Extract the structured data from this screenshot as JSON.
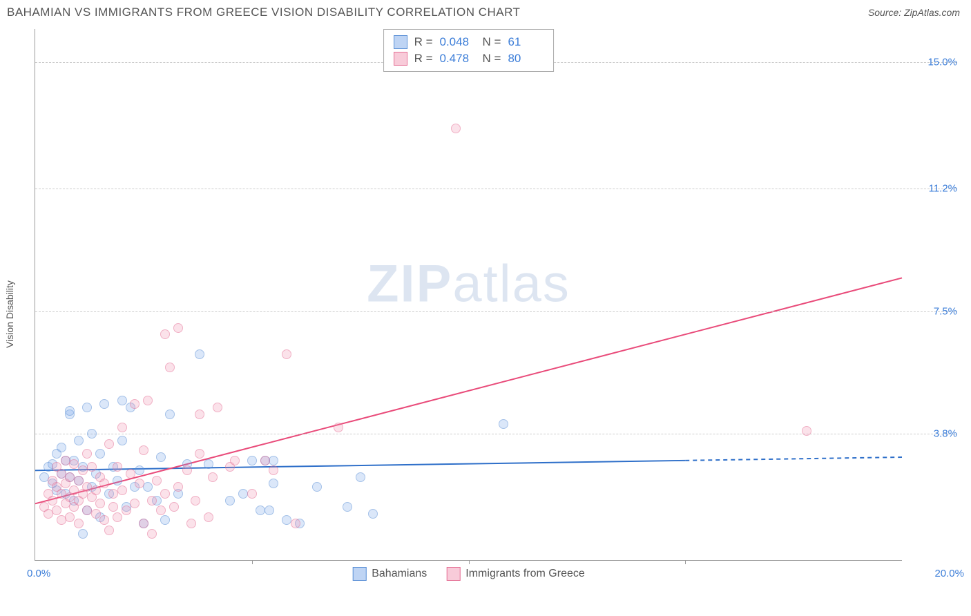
{
  "title": "BAHAMIAN VS IMMIGRANTS FROM GREECE VISION DISABILITY CORRELATION CHART",
  "source_label": "Source: ZipAtlas.com",
  "ylabel": "Vision Disability",
  "watermark": {
    "bold": "ZIP",
    "rest": "atlas"
  },
  "chart": {
    "type": "scatter",
    "xlim": [
      0,
      20
    ],
    "ylim": [
      0,
      16
    ],
    "x_ticks_major": [
      0,
      20
    ],
    "x_ticks_minor": [
      5,
      10,
      15
    ],
    "x_tick_labels": [
      "0.0%",
      "20.0%"
    ],
    "y_gridlines": [
      3.8,
      7.5,
      11.2,
      15.0
    ],
    "y_tick_labels": [
      "3.8%",
      "7.5%",
      "11.2%",
      "15.0%"
    ],
    "background_color": "#ffffff",
    "grid_color": "#cccccc",
    "axis_color": "#999999",
    "marker_radius": 7,
    "series": [
      {
        "name": "Bahamians",
        "color_fill": "rgba(110,160,230,0.45)",
        "color_stroke": "#5a8fd6",
        "R": "0.048",
        "N": "61",
        "trend": {
          "x1": 0,
          "y1": 2.7,
          "x2": 15,
          "y2": 3.0,
          "x2_dash": 20,
          "y2_dash": 3.1,
          "color": "#2e6fc9",
          "width": 2
        },
        "points": [
          [
            0.2,
            2.5
          ],
          [
            0.3,
            2.8
          ],
          [
            0.4,
            2.3
          ],
          [
            0.4,
            2.9
          ],
          [
            0.5,
            3.2
          ],
          [
            0.5,
            2.1
          ],
          [
            0.6,
            2.6
          ],
          [
            0.6,
            3.4
          ],
          [
            0.7,
            2.0
          ],
          [
            0.7,
            3.0
          ],
          [
            0.8,
            2.5
          ],
          [
            0.8,
            4.4
          ],
          [
            0.8,
            4.5
          ],
          [
            0.9,
            3.0
          ],
          [
            0.9,
            1.8
          ],
          [
            1.0,
            3.6
          ],
          [
            1.0,
            2.4
          ],
          [
            1.1,
            2.8
          ],
          [
            1.2,
            4.6
          ],
          [
            1.2,
            1.5
          ],
          [
            1.3,
            2.2
          ],
          [
            1.3,
            3.8
          ],
          [
            1.4,
            2.6
          ],
          [
            1.5,
            3.2
          ],
          [
            1.5,
            1.3
          ],
          [
            1.6,
            4.7
          ],
          [
            1.7,
            2.0
          ],
          [
            1.8,
            2.8
          ],
          [
            1.9,
            2.4
          ],
          [
            2.0,
            3.6
          ],
          [
            2.0,
            4.8
          ],
          [
            2.1,
            1.6
          ],
          [
            2.2,
            4.6
          ],
          [
            2.3,
            2.2
          ],
          [
            2.4,
            2.7
          ],
          [
            2.5,
            1.1
          ],
          [
            2.6,
            2.2
          ],
          [
            2.8,
            1.8
          ],
          [
            2.9,
            3.1
          ],
          [
            3.0,
            1.2
          ],
          [
            3.1,
            4.4
          ],
          [
            3.3,
            2.0
          ],
          [
            3.5,
            2.9
          ],
          [
            3.8,
            6.2
          ],
          [
            4.0,
            2.9
          ],
          [
            4.5,
            1.8
          ],
          [
            4.8,
            2.0
          ],
          [
            5.0,
            3.0
          ],
          [
            5.2,
            1.5
          ],
          [
            5.3,
            3.0
          ],
          [
            5.4,
            1.5
          ],
          [
            5.5,
            2.3
          ],
          [
            5.5,
            3.0
          ],
          [
            5.8,
            1.2
          ],
          [
            6.1,
            1.1
          ],
          [
            6.5,
            2.2
          ],
          [
            7.2,
            1.6
          ],
          [
            7.5,
            2.5
          ],
          [
            7.8,
            1.4
          ],
          [
            10.8,
            4.1
          ],
          [
            1.1,
            0.8
          ]
        ]
      },
      {
        "name": "Immigrants from Greece",
        "color_fill": "rgba(240,140,170,0.45)",
        "color_stroke": "#e56f95",
        "R": "0.478",
        "N": "80",
        "trend": {
          "x1": 0,
          "y1": 1.7,
          "x2": 20,
          "y2": 8.5,
          "color": "#e94b7a",
          "width": 2
        },
        "points": [
          [
            0.2,
            1.6
          ],
          [
            0.3,
            2.0
          ],
          [
            0.3,
            1.4
          ],
          [
            0.4,
            2.4
          ],
          [
            0.4,
            1.8
          ],
          [
            0.5,
            2.2
          ],
          [
            0.5,
            1.5
          ],
          [
            0.5,
            2.8
          ],
          [
            0.6,
            2.0
          ],
          [
            0.6,
            1.2
          ],
          [
            0.6,
            2.6
          ],
          [
            0.7,
            3.0
          ],
          [
            0.7,
            1.7
          ],
          [
            0.7,
            2.3
          ],
          [
            0.8,
            1.9
          ],
          [
            0.8,
            2.5
          ],
          [
            0.8,
            1.3
          ],
          [
            0.9,
            2.1
          ],
          [
            0.9,
            1.6
          ],
          [
            0.9,
            2.9
          ],
          [
            1.0,
            1.8
          ],
          [
            1.0,
            2.4
          ],
          [
            1.0,
            1.1
          ],
          [
            1.1,
            2.0
          ],
          [
            1.1,
            2.7
          ],
          [
            1.2,
            3.2
          ],
          [
            1.2,
            1.5
          ],
          [
            1.2,
            2.2
          ],
          [
            1.3,
            1.9
          ],
          [
            1.3,
            2.8
          ],
          [
            1.4,
            1.4
          ],
          [
            1.4,
            2.1
          ],
          [
            1.5,
            1.7
          ],
          [
            1.5,
            2.5
          ],
          [
            1.6,
            1.2
          ],
          [
            1.6,
            2.3
          ],
          [
            1.7,
            3.5
          ],
          [
            1.7,
            0.9
          ],
          [
            1.8,
            2.0
          ],
          [
            1.8,
            1.6
          ],
          [
            1.9,
            2.8
          ],
          [
            1.9,
            1.3
          ],
          [
            2.0,
            4.0
          ],
          [
            2.0,
            2.1
          ],
          [
            2.1,
            1.5
          ],
          [
            2.2,
            2.6
          ],
          [
            2.3,
            4.7
          ],
          [
            2.3,
            1.7
          ],
          [
            2.4,
            2.3
          ],
          [
            2.5,
            1.1
          ],
          [
            2.5,
            3.3
          ],
          [
            2.6,
            4.8
          ],
          [
            2.7,
            1.8
          ],
          [
            2.7,
            0.8
          ],
          [
            2.8,
            2.4
          ],
          [
            2.9,
            1.5
          ],
          [
            3.0,
            6.8
          ],
          [
            3.0,
            2.0
          ],
          [
            3.1,
            5.8
          ],
          [
            3.2,
            1.6
          ],
          [
            3.3,
            7.0
          ],
          [
            3.3,
            2.2
          ],
          [
            3.5,
            2.7
          ],
          [
            3.6,
            1.1
          ],
          [
            3.7,
            1.8
          ],
          [
            3.8,
            4.4
          ],
          [
            3.8,
            3.2
          ],
          [
            4.0,
            1.3
          ],
          [
            4.1,
            2.5
          ],
          [
            4.2,
            4.6
          ],
          [
            4.5,
            2.8
          ],
          [
            4.6,
            3.0
          ],
          [
            5.0,
            2.0
          ],
          [
            5.3,
            3.0
          ],
          [
            5.5,
            2.7
          ],
          [
            5.8,
            6.2
          ],
          [
            6.0,
            1.1
          ],
          [
            7.0,
            4.0
          ],
          [
            9.7,
            13.0
          ],
          [
            17.8,
            3.9
          ]
        ]
      }
    ],
    "legend_top": [
      {
        "swatch_fill": "rgba(110,160,230,0.45)",
        "swatch_stroke": "#5a8fd6",
        "R": "0.048",
        "N": "61"
      },
      {
        "swatch_fill": "rgba(240,140,170,0.45)",
        "swatch_stroke": "#e56f95",
        "R": "0.478",
        "N": "80"
      }
    ],
    "legend_bottom": [
      {
        "label": "Bahamians",
        "swatch_fill": "rgba(110,160,230,0.45)",
        "swatch_stroke": "#5a8fd6"
      },
      {
        "label": "Immigrants from Greece",
        "swatch_fill": "rgba(240,140,170,0.45)",
        "swatch_stroke": "#e56f95"
      }
    ]
  }
}
